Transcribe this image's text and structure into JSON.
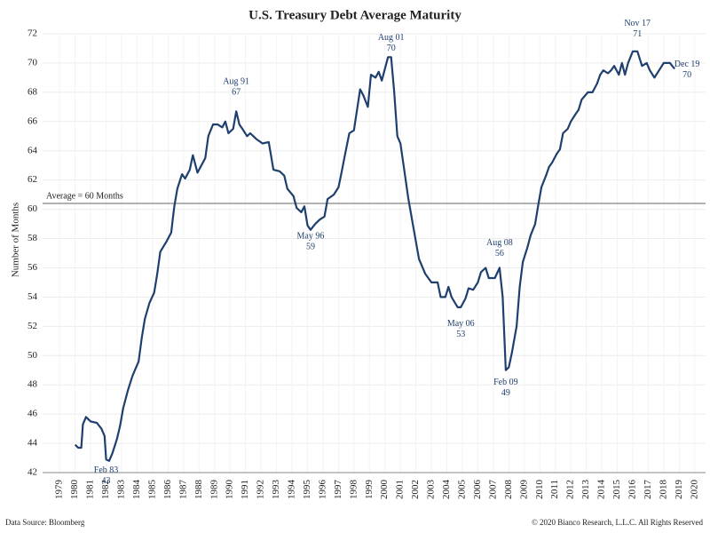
{
  "chart_data": {
    "type": "line",
    "title": "U.S. Treasury Debt Average Maturity",
    "y_label": "Number of Months",
    "source": "Data Source: Bloomberg",
    "copyright": "© 2020 Bianco Research, L.L.C. All Rights Reserved",
    "color": "#1f3f6e",
    "grid": true,
    "xlim": [
      1977.9,
      2020.7
    ],
    "ylim": [
      42,
      72
    ],
    "yticks": [
      42,
      44,
      46,
      48,
      50,
      52,
      54,
      56,
      58,
      60,
      62,
      64,
      66,
      68,
      70,
      72
    ],
    "xticks": [
      1979,
      1980,
      1981,
      1982,
      1983,
      1984,
      1985,
      1986,
      1987,
      1988,
      1989,
      1990,
      1991,
      1992,
      1993,
      1994,
      1995,
      1996,
      1997,
      1998,
      1999,
      2000,
      2001,
      2002,
      2003,
      2004,
      2005,
      2006,
      2007,
      2008,
      2009,
      2010,
      2011,
      2012,
      2013,
      2014,
      2015,
      2016,
      2017,
      2018,
      2019,
      2020
    ],
    "average": {
      "label": "Average = 60 Months",
      "value": 60.4,
      "color": "#999999"
    },
    "x": [
      1980.0,
      1980.2,
      1980.4,
      1980.5,
      1980.7,
      1981.0,
      1981.4,
      1981.7,
      1981.9,
      1982.0,
      1982.2,
      1982.4,
      1982.7,
      1982.9,
      1983.1,
      1983.4,
      1983.7,
      1983.9,
      1984.1,
      1984.3,
      1984.5,
      1984.8,
      1985.1,
      1985.3,
      1985.5,
      1985.9,
      1986.2,
      1986.4,
      1986.6,
      1986.9,
      1987.1,
      1987.4,
      1987.6,
      1987.9,
      1988.1,
      1988.4,
      1988.6,
      1988.9,
      1989.2,
      1989.5,
      1989.7,
      1989.9,
      1990.2,
      1990.4,
      1990.6,
      1990.8,
      1991.1,
      1991.3,
      1991.7,
      1992.1,
      1992.5,
      1992.8,
      1993.2,
      1993.5,
      1993.7,
      1994.1,
      1994.3,
      1994.6,
      1994.8,
      1995.0,
      1995.2,
      1995.5,
      1995.8,
      1996.1,
      1996.3,
      1996.7,
      1997.0,
      1997.2,
      1997.4,
      1997.7,
      1998.0,
      1998.2,
      1998.4,
      1998.6,
      1998.9,
      1999.1,
      1999.4,
      1999.6,
      1999.8,
      2000.2,
      2000.4,
      2000.6,
      2000.8,
      2001.0,
      2001.3,
      2001.5,
      2001.8,
      2002.0,
      2002.2,
      2002.6,
      2002.8,
      2003.0,
      2003.4,
      2003.6,
      2003.9,
      2004.1,
      2004.3,
      2004.7,
      2004.9,
      2005.2,
      2005.4,
      2005.7,
      2006.0,
      2006.2,
      2006.5,
      2006.7,
      2007.1,
      2007.4,
      2007.6,
      2007.8,
      2008.0,
      2008.2,
      2008.5,
      2008.7,
      2008.9,
      2009.2,
      2009.4,
      2009.7,
      2009.9,
      2010.1,
      2010.4,
      2010.6,
      2010.8,
      2011.1,
      2011.3,
      2011.5,
      2011.8,
      2012.0,
      2012.3,
      2012.5,
      2012.7,
      2013.1,
      2013.4,
      2013.7,
      2013.9,
      2014.1,
      2014.4,
      2014.6,
      2014.8,
      2015.1,
      2015.3,
      2015.5,
      2015.7,
      2016.0,
      2016.3,
      2016.6,
      2016.9,
      2017.1,
      2017.4,
      2017.7,
      2018.0,
      2018.4,
      2018.7
    ],
    "values": [
      43.9,
      43.7,
      43.7,
      45.3,
      45.8,
      45.5,
      45.4,
      45.0,
      44.5,
      42.9,
      42.8,
      43.3,
      44.3,
      45.2,
      46.4,
      47.6,
      48.6,
      49.1,
      49.6,
      51.2,
      52.5,
      53.6,
      54.3,
      55.6,
      57.1,
      57.8,
      58.4,
      60.2,
      61.4,
      62.4,
      62.1,
      62.7,
      63.7,
      62.5,
      62.9,
      63.5,
      65.0,
      65.8,
      65.8,
      65.6,
      66.0,
      65.2,
      65.5,
      66.7,
      65.8,
      65.5,
      65.0,
      65.2,
      64.8,
      64.5,
      64.6,
      62.7,
      62.6,
      62.3,
      61.4,
      60.9,
      60.1,
      59.8,
      60.2,
      58.9,
      58.6,
      59.0,
      59.3,
      59.5,
      60.7,
      61.0,
      61.5,
      62.5,
      63.6,
      65.2,
      65.4,
      66.8,
      68.2,
      67.8,
      67.0,
      69.2,
      69.0,
      69.4,
      68.8,
      70.4,
      70.4,
      68.0,
      65.0,
      64.5,
      62.3,
      60.8,
      59.0,
      57.8,
      56.6,
      55.6,
      55.3,
      55.0,
      55.0,
      54.0,
      54.0,
      54.7,
      54.0,
      53.3,
      53.3,
      53.9,
      54.6,
      54.5,
      55.0,
      55.7,
      56.0,
      55.3,
      55.3,
      56.0,
      54.0,
      49.0,
      49.2,
      50.2,
      52.0,
      54.7,
      56.4,
      57.4,
      58.2,
      59.0,
      60.3,
      61.5,
      62.3,
      62.9,
      63.2,
      63.8,
      64.1,
      65.2,
      65.5,
      66.0,
      66.5,
      66.8,
      67.5,
      68.0,
      68.0,
      68.6,
      69.2,
      69.5,
      69.3,
      69.5,
      69.8,
      69.2,
      70.0,
      69.2,
      70.0,
      70.8,
      70.8,
      69.8,
      70.0,
      69.5,
      69.0,
      69.5,
      70.0,
      70.0,
      69.6
    ],
    "annotations": [
      {
        "label": "Feb 83",
        "value": 43,
        "x": 1982.0,
        "position": "below"
      },
      {
        "label": "Aug 91",
        "value": 67,
        "x": 1990.4,
        "position": "above"
      },
      {
        "label": "May 96",
        "value": 59,
        "x": 1995.2,
        "position": "below"
      },
      {
        "label": "Aug 01",
        "value": 70,
        "x": 2000.4,
        "position": "above"
      },
      {
        "label": "May 06",
        "value": 53,
        "x": 2004.9,
        "position": "below"
      },
      {
        "label": "Aug 08",
        "value": 56,
        "x": 2007.4,
        "position": "above"
      },
      {
        "label": "Feb 09",
        "value": 49,
        "x": 2007.8,
        "position": "below"
      },
      {
        "label": "Nov 17",
        "value": 71,
        "x": 2016.3,
        "position": "above"
      },
      {
        "label": "Dec 19",
        "value": 70,
        "x": 2018.7,
        "position": "right"
      }
    ]
  }
}
